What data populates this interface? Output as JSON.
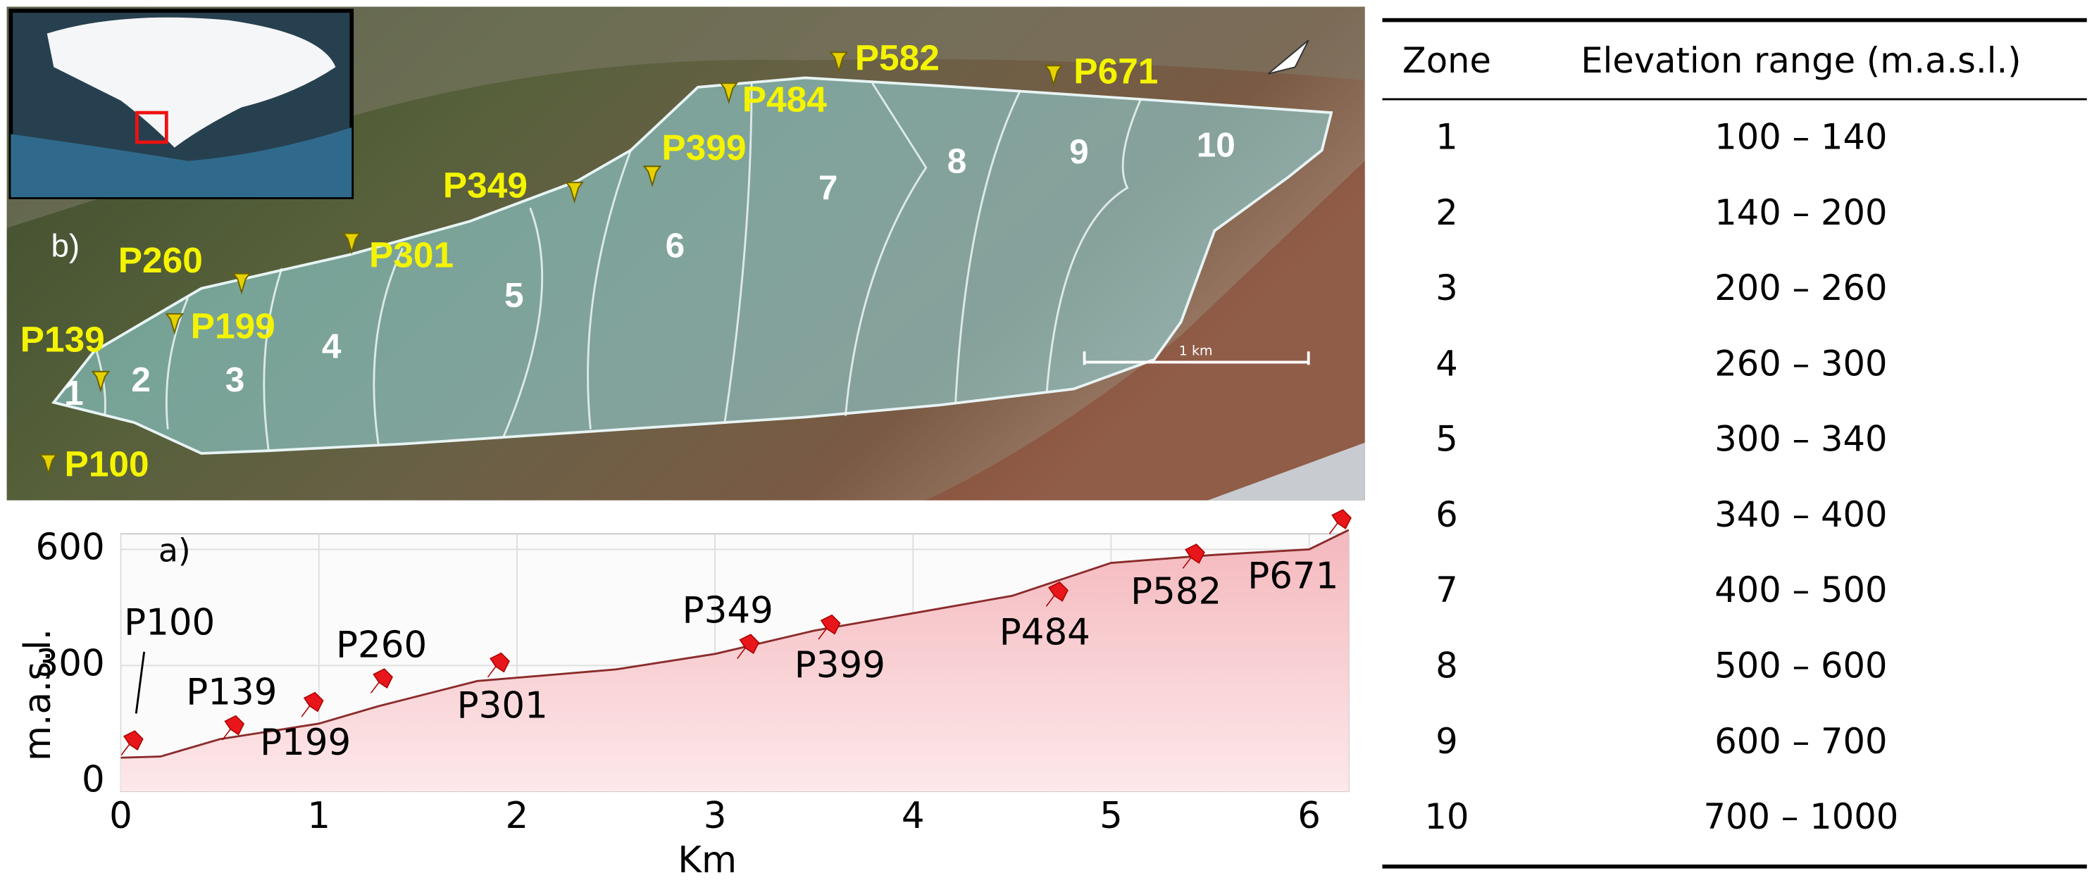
{
  "map": {
    "panel_label": "b)",
    "zones": [
      "1",
      "2",
      "3",
      "4",
      "5",
      "6",
      "7",
      "8",
      "9",
      "10"
    ],
    "points": [
      "P582",
      "P671",
      "P484",
      "P399",
      "P349",
      "P301",
      "P260",
      "P199",
      "P139",
      "P100"
    ],
    "scale_label": "1 km"
  },
  "chart_data": {
    "type": "line",
    "panel_label": "a)",
    "y_label": "m.a.s.l.",
    "x_label": "Km",
    "x": [
      0,
      0.2,
      0.5,
      1.0,
      1.3,
      1.8,
      2.5,
      3.0,
      3.5,
      4.0,
      4.5,
      5.0,
      5.5,
      6.0,
      6.2
    ],
    "values": [
      62,
      65,
      110,
      150,
      195,
      260,
      290,
      330,
      390,
      435,
      480,
      565,
      585,
      600,
      650
    ],
    "color": "#8b2b2b",
    "fill": "#f4b8bd",
    "markers": {
      "x": [
        0.05,
        0.56,
        0.96,
        1.31,
        1.9,
        3.16,
        3.57,
        4.72,
        5.41,
        6.15
      ],
      "y": [
        100,
        139,
        199,
        260,
        301,
        349,
        399,
        484,
        582,
        671
      ],
      "labels": [
        "P100",
        "P139",
        "P199",
        "P260",
        "P301",
        "P349",
        "P399",
        "P484",
        "P582",
        "P671"
      ],
      "color": "#e8161b"
    },
    "xlim": [
      0,
      6.2
    ],
    "ylim": [
      -25,
      640
    ],
    "xticks": [
      0,
      1,
      2,
      3,
      4,
      5,
      6
    ],
    "yticks": [
      0,
      300,
      600
    ],
    "grid": true
  },
  "table": {
    "header": [
      "Zone",
      "Elevation range (m.a.s.l.)"
    ],
    "rows": [
      [
        "1",
        "100 – 140"
      ],
      [
        "2",
        "140 – 200"
      ],
      [
        "3",
        "200 – 260"
      ],
      [
        "4",
        "260 – 300"
      ],
      [
        "5",
        "300 – 340"
      ],
      [
        "6",
        "340 – 400"
      ],
      [
        "7",
        "400 – 500"
      ],
      [
        "8",
        "500 – 600"
      ],
      [
        "9",
        "600 – 700"
      ],
      [
        "10",
        "700 – 1000"
      ]
    ]
  }
}
